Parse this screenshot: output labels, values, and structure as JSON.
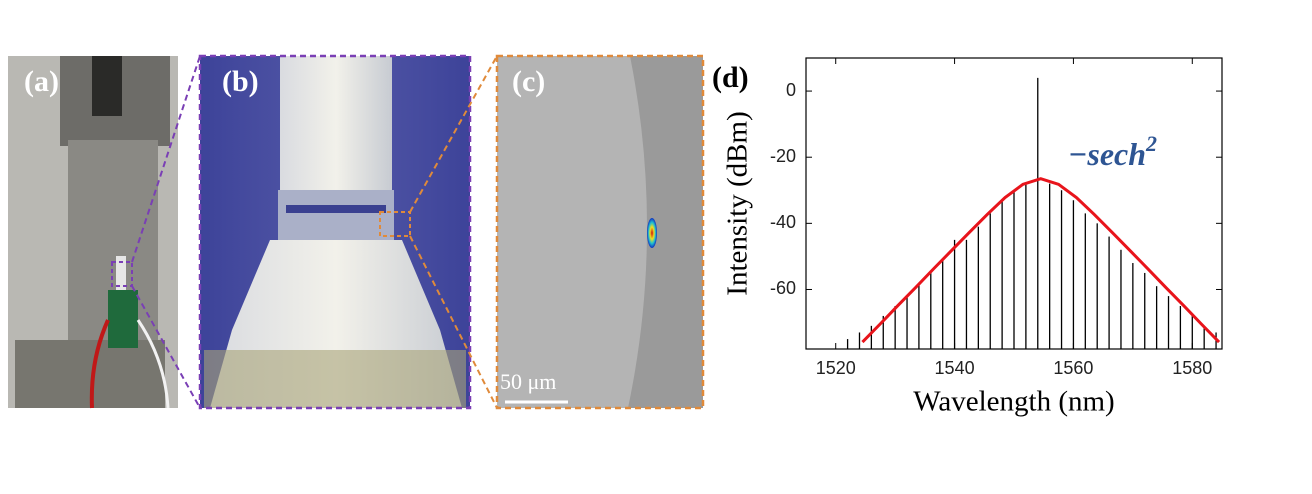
{
  "panels": {
    "a": "(a)",
    "b": "(b)",
    "c": "(c)",
    "d": "(d)",
    "scale_bar": "50 μm"
  },
  "chart_data": {
    "type": "line",
    "xlabel": "Wavelength (nm)",
    "ylabel": "Intensity (dBm)",
    "annotation": {
      "text": "−sech",
      "superscript": "2",
      "color": "#2e5593"
    },
    "xlim": [
      1515,
      1585
    ],
    "ylim": [
      -78,
      10
    ],
    "xticks": [
      1520,
      1540,
      1560,
      1580
    ],
    "yticks": [
      -60,
      -40,
      -20,
      0
    ],
    "comb": {
      "color": "#000000",
      "x": [
        1522,
        1524,
        1526,
        1528,
        1530,
        1532,
        1534,
        1536,
        1538,
        1540,
        1542,
        1544,
        1546,
        1548,
        1550,
        1552,
        1554,
        1556,
        1558,
        1560,
        1562,
        1564,
        1566,
        1568,
        1570,
        1572,
        1574,
        1576,
        1578,
        1580,
        1582,
        1584
      ],
      "values": [
        -75,
        -73,
        -71,
        -68,
        -65,
        -62,
        -58,
        -55,
        -51,
        -45,
        -45,
        -41,
        -37,
        -33,
        -30,
        -28,
        4,
        -28,
        -30,
        -33,
        -37,
        -40,
        -44,
        -48,
        -52,
        -55,
        -59,
        -62,
        -65,
        -68,
        -71,
        -73
      ]
    },
    "fit": {
      "color": "#e8141b",
      "x": [
        1524.5,
        1527.5,
        1530.5,
        1533.5,
        1536.5,
        1539.5,
        1542.5,
        1545.5,
        1548.5,
        1551.5,
        1554.5,
        1557.5,
        1560.5,
        1563.5,
        1566.5,
        1569.5,
        1572.5,
        1575.5,
        1578.5,
        1581.5,
        1584.5
      ],
      "values": [
        -75.9,
        -70.4,
        -64.8,
        -59.3,
        -53.7,
        -48.2,
        -42.7,
        -37.3,
        -32.2,
        -28.2,
        -26.5,
        -28.2,
        -32.2,
        -37.3,
        -42.7,
        -48.2,
        -53.7,
        -59.3,
        -64.8,
        -70.4,
        -75.9
      ]
    }
  }
}
